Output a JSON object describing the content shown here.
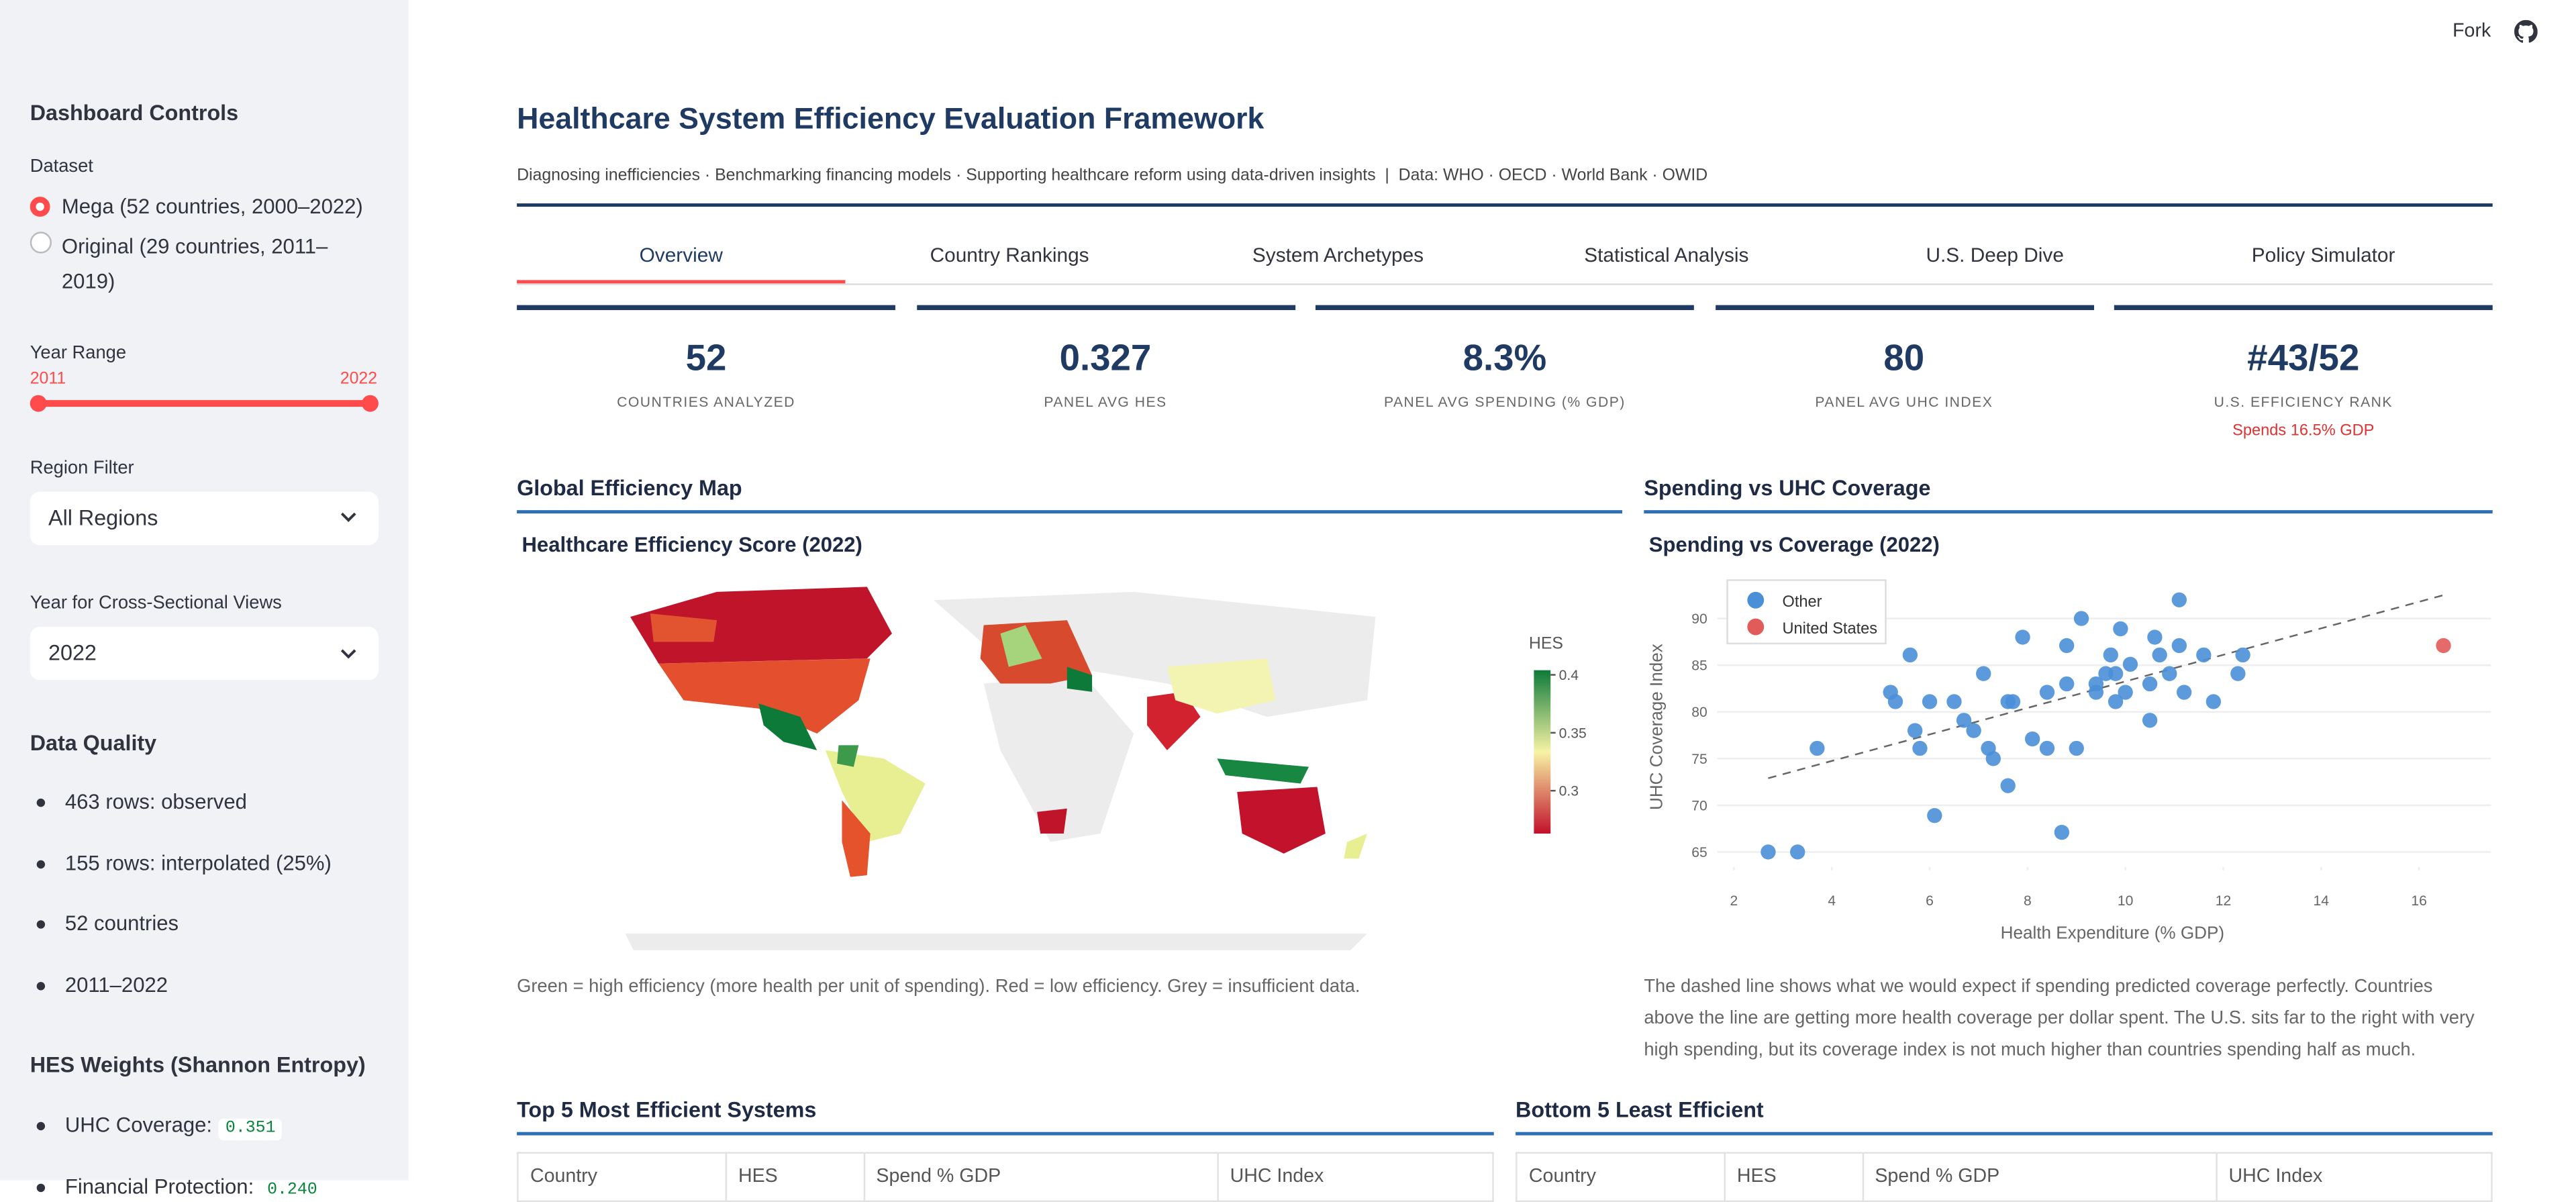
{
  "topbar": {
    "fork": "Fork"
  },
  "sidebar": {
    "title": "Dashboard Controls",
    "dataset_label": "Dataset",
    "dataset_options": [
      "Mega (52 countries, 2000–2022)",
      "Original (29 countries, 2011–2019)"
    ],
    "year_range_label": "Year Range",
    "year_range": [
      "2011",
      "2022"
    ],
    "region_label": "Region Filter",
    "region_value": "All Regions",
    "year_label": "Year for Cross-Sectional Views",
    "year_value": "2022",
    "quality_title": "Data Quality",
    "quality_items": [
      "463 rows: observed",
      "155 rows: interpolated (25%)",
      "52 countries",
      "2011–2022"
    ],
    "weights_title": "HES Weights (Shannon Entropy)",
    "weights": [
      {
        "name": "UHC Coverage:",
        "value": "0.351"
      },
      {
        "name": "Financial Protection:",
        "value": "0.240"
      }
    ]
  },
  "header": {
    "title": "Healthcare System Efficiency Evaluation Framework",
    "subtitle": "Diagnosing inefficiencies · Benchmarking financing models · Supporting healthcare reform using data-driven insights  |  Data: WHO · OECD · World Bank · OWID"
  },
  "tabs": [
    "Overview",
    "Country Rankings",
    "System Archetypes",
    "Statistical Analysis",
    "U.S. Deep Dive",
    "Policy Simulator"
  ],
  "kpis": [
    {
      "value": "52",
      "label": "COUNTRIES ANALYZED"
    },
    {
      "value": "0.327",
      "label": "PANEL AVG HES"
    },
    {
      "value": "8.3%",
      "label": "PANEL AVG SPENDING (% GDP)"
    },
    {
      "value": "80",
      "label": "PANEL AVG UHC INDEX"
    },
    {
      "value": "#43/52",
      "label": "U.S. EFFICIENCY RANK",
      "note": "Spends 16.5% GDP"
    }
  ],
  "sections": {
    "map": "Global Efficiency Map",
    "scatter": "Spending vs UHC Coverage",
    "map_caption": "Green = high efficiency (more health per unit of spending). Red = low efficiency. Grey = insufficient data.",
    "scatter_caption": "The dashed line shows what we would expect if spending predicted coverage perfectly. Countries above the line are getting more health coverage per dollar spent. The U.S. sits far to the right with very high spending, but its coverage index is not much higher than countries spending half as much.",
    "top5": "Top 5 Most Efficient Systems",
    "bottom5": "Bottom 5 Least Efficient"
  },
  "tables": {
    "top5_header": [
      "Country",
      "HES",
      "Spend % GDP",
      "UHC Index"
    ],
    "bottom5_header": [
      "Country",
      "HES",
      "Spend % GDP",
      "UHC Index"
    ]
  },
  "chart_data": [
    {
      "type": "choropleth",
      "title": "Healthcare Efficiency Score (2022)",
      "colorbar_title": "HES",
      "clim": [
        0.263,
        0.404
      ],
      "ticks": [
        0.3,
        0.35,
        0.4
      ],
      "colors": [
        "#c2102a",
        "#f7f3a4",
        "#0e7a3a"
      ]
    },
    {
      "type": "scatter",
      "title": "Spending vs Coverage (2022)",
      "x_label": "Health Expenditure (% GDP)",
      "y_label": "UHC Coverage Index",
      "xlim": [
        1.66,
        17.47
      ],
      "ylim": [
        63.04,
        93.75
      ],
      "xticks": [
        2,
        4,
        6,
        8,
        10,
        12,
        14,
        16
      ],
      "yticks": [
        65,
        70,
        75,
        80,
        85,
        90
      ],
      "grid": true,
      "series": [
        {
          "name": "Other",
          "color": "#4a8fd8",
          "x": [
            2.7,
            3.3,
            3.7,
            5.6,
            5.2,
            5.3,
            5.7,
            5.8,
            6.0,
            6.1,
            6.5,
            6.7,
            6.9,
            7.1,
            7.2,
            7.3,
            7.6,
            7.7,
            7.6,
            7.9,
            8.1,
            8.4,
            8.4,
            8.7,
            8.8,
            8.8,
            9.0,
            9.1,
            9.4,
            9.4,
            9.6,
            9.7,
            9.8,
            9.8,
            9.9,
            10.0,
            10.1,
            10.5,
            10.5,
            10.6,
            10.7,
            10.9,
            11.1,
            11.1,
            11.2,
            11.6,
            11.8,
            12.3,
            12.4
          ],
          "values": [
            65,
            65,
            76.1,
            86.1,
            82.1,
            81.1,
            78,
            76.1,
            81.1,
            68.9,
            81.1,
            79.1,
            78,
            84.1,
            76.1,
            75,
            81.1,
            81.1,
            72.1,
            88,
            77.1,
            76.1,
            82.1,
            67.1,
            87.1,
            83,
            76.1,
            90,
            83,
            82.1,
            84.1,
            86.1,
            84.1,
            81.1,
            88.9,
            82.1,
            85.1,
            79.1,
            83,
            88,
            86.1,
            84.1,
            87.1,
            92,
            82.1,
            86.1,
            81.1,
            84.1,
            86.1
          ]
        },
        {
          "name": "United States",
          "color": "#e25b5b",
          "x": [
            16.5
          ],
          "values": [
            87.1
          ]
        }
      ],
      "trend_line": {
        "x": [
          2.7,
          16.5
        ],
        "values": [
          72.9,
          92.5
        ]
      }
    }
  ]
}
